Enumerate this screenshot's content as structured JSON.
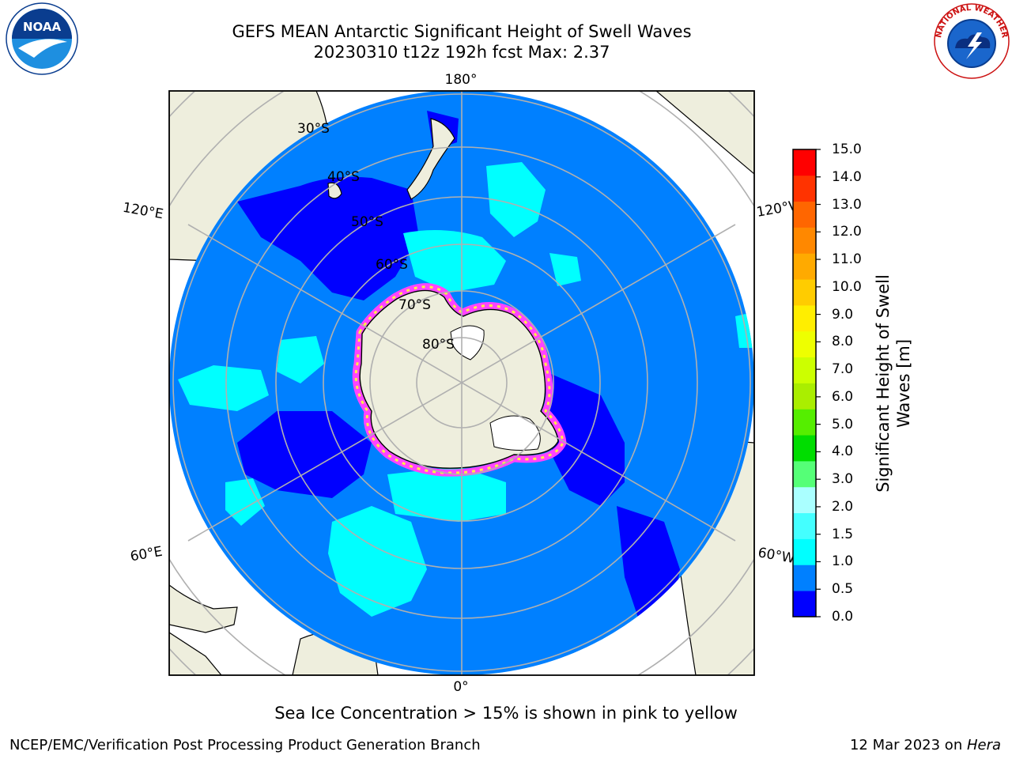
{
  "header": {
    "title_line1": "GEFS MEAN Antarctic Significant Height of Swell Waves",
    "title_line2": "20230310 t12z 192h fcst   Max: 2.37"
  },
  "logos": {
    "noaa_text": "NOAA",
    "nws_text": "NATIONAL WEATHER SERVICE"
  },
  "map": {
    "longitude_labels": {
      "top": "180°",
      "bottom": "0°",
      "upper_left": "120°E",
      "upper_right": "120°W",
      "lower_left": "60°E",
      "lower_right": "60°W"
    },
    "latitude_labels": [
      "30°S",
      "40°S",
      "50°S",
      "60°S",
      "70°S",
      "80°S"
    ],
    "colors": {
      "land": "#eeeedd",
      "ocean_low": "#0080ff",
      "ocean_lowest": "#0000ff",
      "swell_1_15": "#00ffff",
      "ice_edge": "#ff44ff",
      "ice_yellow": "#ffee44",
      "grid": "#b0b0b0"
    }
  },
  "colorbar": {
    "label_line1": "Significant Height of Swell",
    "label_line2": "Waves [m]",
    "ticks": [
      "15.0",
      "14.0",
      "13.0",
      "12.0",
      "11.0",
      "10.0",
      "9.0",
      "8.0",
      "7.0",
      "6.0",
      "5.0",
      "4.0",
      "3.0",
      "2.0",
      "1.5",
      "1.0",
      "0.5",
      "0.0"
    ],
    "colors": [
      "#0000ff",
      "#0080ff",
      "#00ffff",
      "#44ffff",
      "#aaffff",
      "#55ff77",
      "#00dd00",
      "#55ee00",
      "#aaee00",
      "#ccff00",
      "#eeff00",
      "#ffee00",
      "#ffcc00",
      "#ffaa00",
      "#ff8800",
      "#ff6600",
      "#ff3300",
      "#ff0000"
    ]
  },
  "notes": {
    "sea_ice": "Sea Ice Concentration > 15% is shown in pink to yellow",
    "footer_left": "NCEP/EMC/Verification Post Processing Product Generation Branch",
    "footer_date": "12 Mar 2023 on ",
    "footer_machine": "Hera"
  }
}
